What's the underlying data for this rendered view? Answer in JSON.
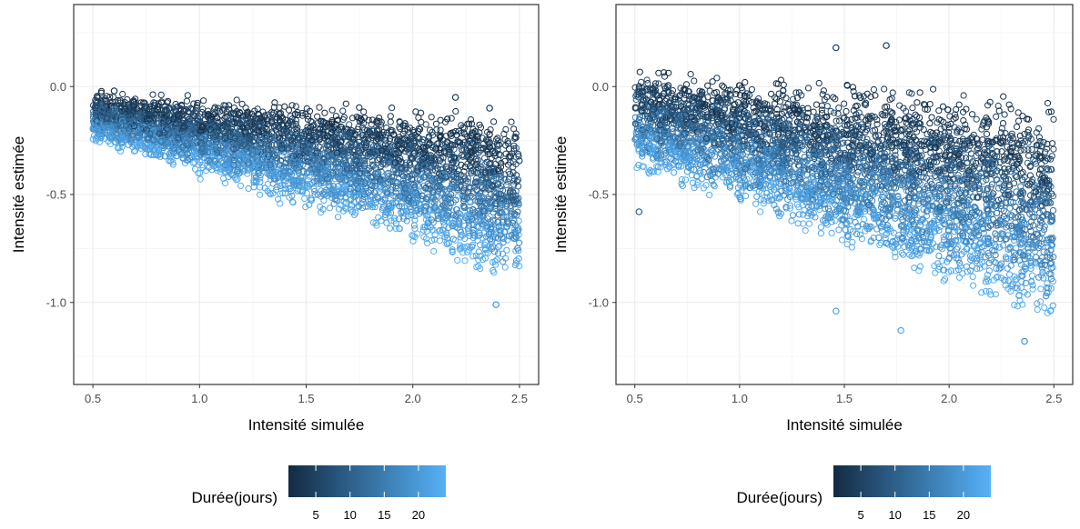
{
  "chart_data": [
    {
      "type": "scatter",
      "title": "",
      "xlabel": "Intensité simulée",
      "ylabel": "Intensité estimée",
      "xlim": [
        0.41,
        2.59
      ],
      "ylim": [
        -1.38,
        0.38
      ],
      "x_ticks": [
        0.5,
        1.0,
        1.5,
        2.0,
        2.5
      ],
      "x_tick_labels": [
        "0.5",
        "1.0",
        "1.5",
        "2.0",
        "2.5"
      ],
      "y_ticks": [
        0.0,
        -0.5,
        -1.0
      ],
      "y_tick_labels": [
        "0.0",
        "-0.5",
        "-1.0"
      ],
      "grid": true,
      "marker": "open-circle",
      "color_scale": {
        "title": "Durée(jours)",
        "low": 1,
        "high": 24,
        "low_color": "#132b43",
        "high_color": "#56b1f7",
        "ticks": [
          5,
          10,
          15,
          20
        ],
        "tick_labels": [
          "5",
          "10",
          "15",
          "20"
        ]
      },
      "legend_position": "bottom",
      "trend": {
        "x": [
          0.5,
          1.0,
          1.5,
          2.0,
          2.5
        ],
        "upper_short_duration": [
          -0.04,
          -0.07,
          -0.09,
          -0.11,
          -0.14
        ],
        "lower_long_duration": [
          -0.22,
          -0.37,
          -0.52,
          -0.67,
          -0.85
        ]
      },
      "extreme_points": [
        {
          "x": 2.39,
          "y": -1.01,
          "duree": 18
        },
        {
          "x": 2.36,
          "y": -0.1,
          "duree": 3
        },
        {
          "x": 2.2,
          "y": -0.05,
          "duree": 3
        },
        {
          "x": 0.6,
          "y": -0.02,
          "duree": 2
        }
      ]
    },
    {
      "type": "scatter",
      "title": "",
      "xlabel": "Intensité simulée",
      "ylabel": "Intensité estimée",
      "xlim": [
        0.41,
        2.59
      ],
      "ylim": [
        -1.38,
        0.38
      ],
      "x_ticks": [
        0.5,
        1.0,
        1.5,
        2.0,
        2.5
      ],
      "x_tick_labels": [
        "0.5",
        "1.0",
        "1.5",
        "2.0",
        "2.5"
      ],
      "y_ticks": [
        0.0,
        -0.5,
        -1.0
      ],
      "y_tick_labels": [
        "0.0",
        "-0.5",
        "-1.0"
      ],
      "grid": true,
      "marker": "open-circle",
      "color_scale": {
        "title": "Durée(jours)",
        "low": 1,
        "high": 24,
        "low_color": "#132b43",
        "high_color": "#56b1f7",
        "ticks": [
          5,
          10,
          15,
          20
        ],
        "tick_labels": [
          "5",
          "10",
          "15",
          "20"
        ]
      },
      "legend_position": "bottom",
      "trend": {
        "x": [
          0.5,
          1.0,
          1.5,
          2.0,
          2.5
        ],
        "upper_short_duration": [
          0.05,
          0.02,
          0.0,
          -0.02,
          -0.08
        ],
        "lower_long_duration": [
          -0.32,
          -0.5,
          -0.68,
          -0.85,
          -1.02
        ]
      },
      "extreme_points": [
        {
          "x": 1.46,
          "y": 0.18,
          "duree": 4
        },
        {
          "x": 1.7,
          "y": 0.19,
          "duree": 3
        },
        {
          "x": 2.36,
          "y": -1.18,
          "duree": 18
        },
        {
          "x": 1.77,
          "y": -1.13,
          "duree": 22
        },
        {
          "x": 1.46,
          "y": -1.04,
          "duree": 21
        },
        {
          "x": 0.52,
          "y": -0.58,
          "duree": 10
        }
      ]
    }
  ]
}
